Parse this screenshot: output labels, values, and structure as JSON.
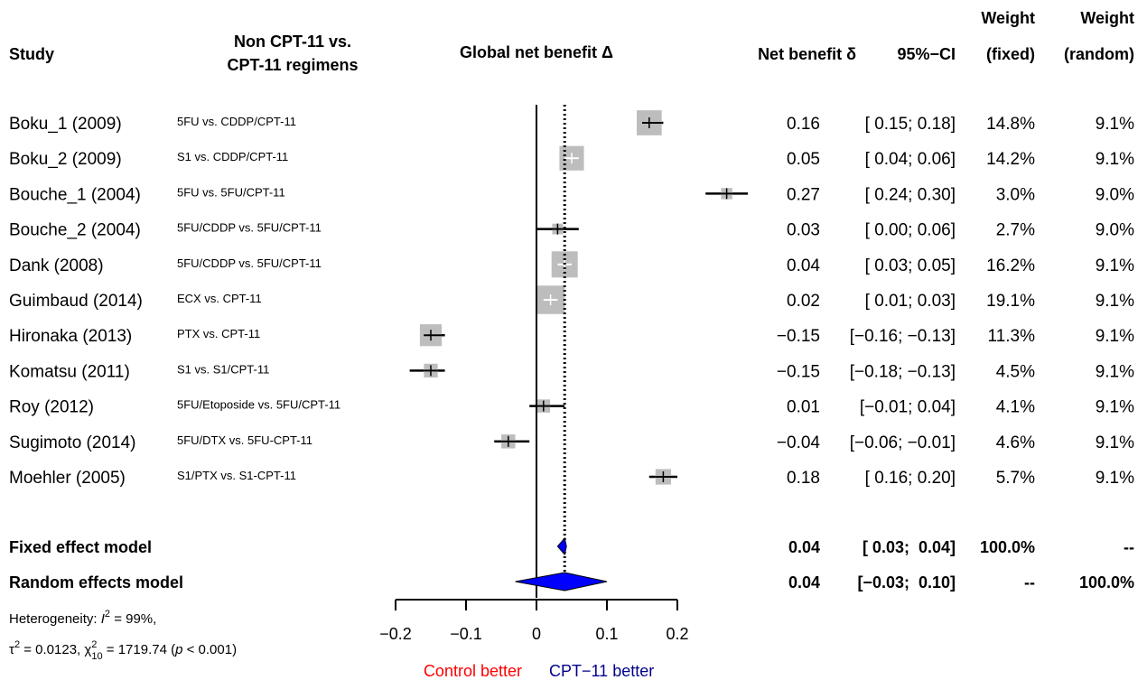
{
  "chart_data": {
    "type": "forest",
    "headers": {
      "study": "Study",
      "regimen_line1": "Non CPT-11 vs.",
      "regimen_line2": "CPT-11 regimens",
      "effect": "Global net benefit Δ",
      "estimate": "Net benefit δ",
      "ci": "95%−CI",
      "weight_fixed_line1": "Weight",
      "weight_fixed_line2": "(fixed)",
      "weight_random_line1": "Weight",
      "weight_random_line2": "(random)"
    },
    "studies": [
      {
        "name": "Boku_1 (2009)",
        "regimen": "5FU vs. CDDP/CPT-11",
        "est": 0.16,
        "lo": 0.15,
        "hi": 0.18,
        "est_text": "0.16",
        "ci_text": "[ 0.15;  0.18]",
        "w_fixed": "14.8%",
        "w_random": "9.1%",
        "w": 14.8
      },
      {
        "name": "Boku_2 (2009)",
        "regimen": "S1 vs. CDDP/CPT-11",
        "est": 0.05,
        "lo": 0.04,
        "hi": 0.06,
        "est_text": "0.05",
        "ci_text": "[ 0.04;  0.06]",
        "w_fixed": "14.2%",
        "w_random": "9.1%",
        "w": 14.2
      },
      {
        "name": "Bouche_1 (2004)",
        "regimen": "5FU vs. 5FU/CPT-11",
        "est": 0.27,
        "lo": 0.24,
        "hi": 0.3,
        "est_text": "0.27",
        "ci_text": "[ 0.24;  0.30]",
        "w_fixed": "3.0%",
        "w_random": "9.0%",
        "w": 3.0
      },
      {
        "name": "Bouche_2 (2004)",
        "regimen": "5FU/CDDP vs. 5FU/CPT-11",
        "est": 0.03,
        "lo": 0.0,
        "hi": 0.06,
        "est_text": "0.03",
        "ci_text": "[ 0.00;  0.06]",
        "w_fixed": "2.7%",
        "w_random": "9.0%",
        "w": 2.7
      },
      {
        "name": "Dank (2008)",
        "regimen": "5FU/CDDP vs. 5FU/CPT-11",
        "est": 0.04,
        "lo": 0.03,
        "hi": 0.05,
        "est_text": "0.04",
        "ci_text": "[ 0.03;  0.05]",
        "w_fixed": "16.2%",
        "w_random": "9.1%",
        "w": 16.2
      },
      {
        "name": "Guimbaud (2014)",
        "regimen": "ECX vs. CPT-11",
        "est": 0.02,
        "lo": 0.01,
        "hi": 0.03,
        "est_text": "0.02",
        "ci_text": "[ 0.01;  0.03]",
        "w_fixed": "19.1%",
        "w_random": "9.1%",
        "w": 19.1
      },
      {
        "name": "Hironaka (2013)",
        "regimen": "PTX vs. CPT-11",
        "est": -0.15,
        "lo": -0.16,
        "hi": -0.13,
        "est_text": "−0.15",
        "ci_text": "[−0.16; −0.13]",
        "w_fixed": "11.3%",
        "w_random": "9.1%",
        "w": 11.3
      },
      {
        "name": "Komatsu (2011)",
        "regimen": "S1 vs. S1/CPT-11",
        "est": -0.15,
        "lo": -0.18,
        "hi": -0.13,
        "est_text": "−0.15",
        "ci_text": "[−0.18; −0.13]",
        "w_fixed": "4.5%",
        "w_random": "9.1%",
        "w": 4.5
      },
      {
        "name": "Roy (2012)",
        "regimen": "5FU/Etoposide vs. 5FU/CPT-11",
        "est": 0.01,
        "lo": -0.01,
        "hi": 0.04,
        "est_text": "0.01",
        "ci_text": "[−0.01;  0.04]",
        "w_fixed": "4.1%",
        "w_random": "9.1%",
        "w": 4.1
      },
      {
        "name": "Sugimoto (2014)",
        "regimen": "5FU/DTX vs. 5FU-CPT-11",
        "est": -0.04,
        "lo": -0.06,
        "hi": -0.01,
        "est_text": "−0.04",
        "ci_text": "[−0.06; −0.01]",
        "w_fixed": "4.6%",
        "w_random": "9.1%",
        "w": 4.6
      },
      {
        "name": "Moehler (2005)",
        "regimen": "S1/PTX vs. S1-CPT-11",
        "est": 0.18,
        "lo": 0.16,
        "hi": 0.2,
        "est_text": "0.18",
        "ci_text": "[ 0.16;  0.20]",
        "w_fixed": "5.7%",
        "w_random": "9.1%",
        "w": 5.7
      }
    ],
    "fixed": {
      "label": "Fixed effect model",
      "est": 0.04,
      "lo": 0.03,
      "hi": 0.04,
      "est_text": "0.04",
      "ci_text": "[ 0.03;  0.04]",
      "w_fixed": "100.0%",
      "w_random": "--"
    },
    "random": {
      "label": "Random effects model",
      "est": 0.04,
      "lo": -0.03,
      "hi": 0.1,
      "est_text": "0.04",
      "ci_text": "[−0.03;  0.10]",
      "w_fixed": "--",
      "w_random": "100.0%"
    },
    "heterogeneity": {
      "line1_prefix": "Heterogeneity: ",
      "i2_symbol": "I",
      "i2_sup": "2",
      "i2_value": " = 99%,",
      "tau_symbol": "τ",
      "tau_sup": "2",
      "tau_value": " = 0.0123, ",
      "chi_symbol": "χ",
      "chi_sup": "2",
      "chi_sub": "10",
      "chi_value": " = 1719.74 (",
      "p_symbol": "p",
      "p_value": " < 0.001)"
    },
    "xaxis": {
      "ticks": [
        -0.2,
        -0.1,
        0,
        0.1,
        0.2
      ],
      "tick_labels": [
        "−0.2",
        "−0.1",
        "0",
        "0.1",
        "0.2"
      ],
      "xlim": [
        -0.2,
        0.2
      ]
    },
    "footer": {
      "left": "Control better",
      "right": "CPT−11 better"
    },
    "colors": {
      "square": "#bdbdbd",
      "ci_line": "#000000",
      "ci_inside": "#ffffff",
      "diamond": "#0000ff",
      "control": "#ff0000",
      "treatment": "#00008b"
    }
  }
}
